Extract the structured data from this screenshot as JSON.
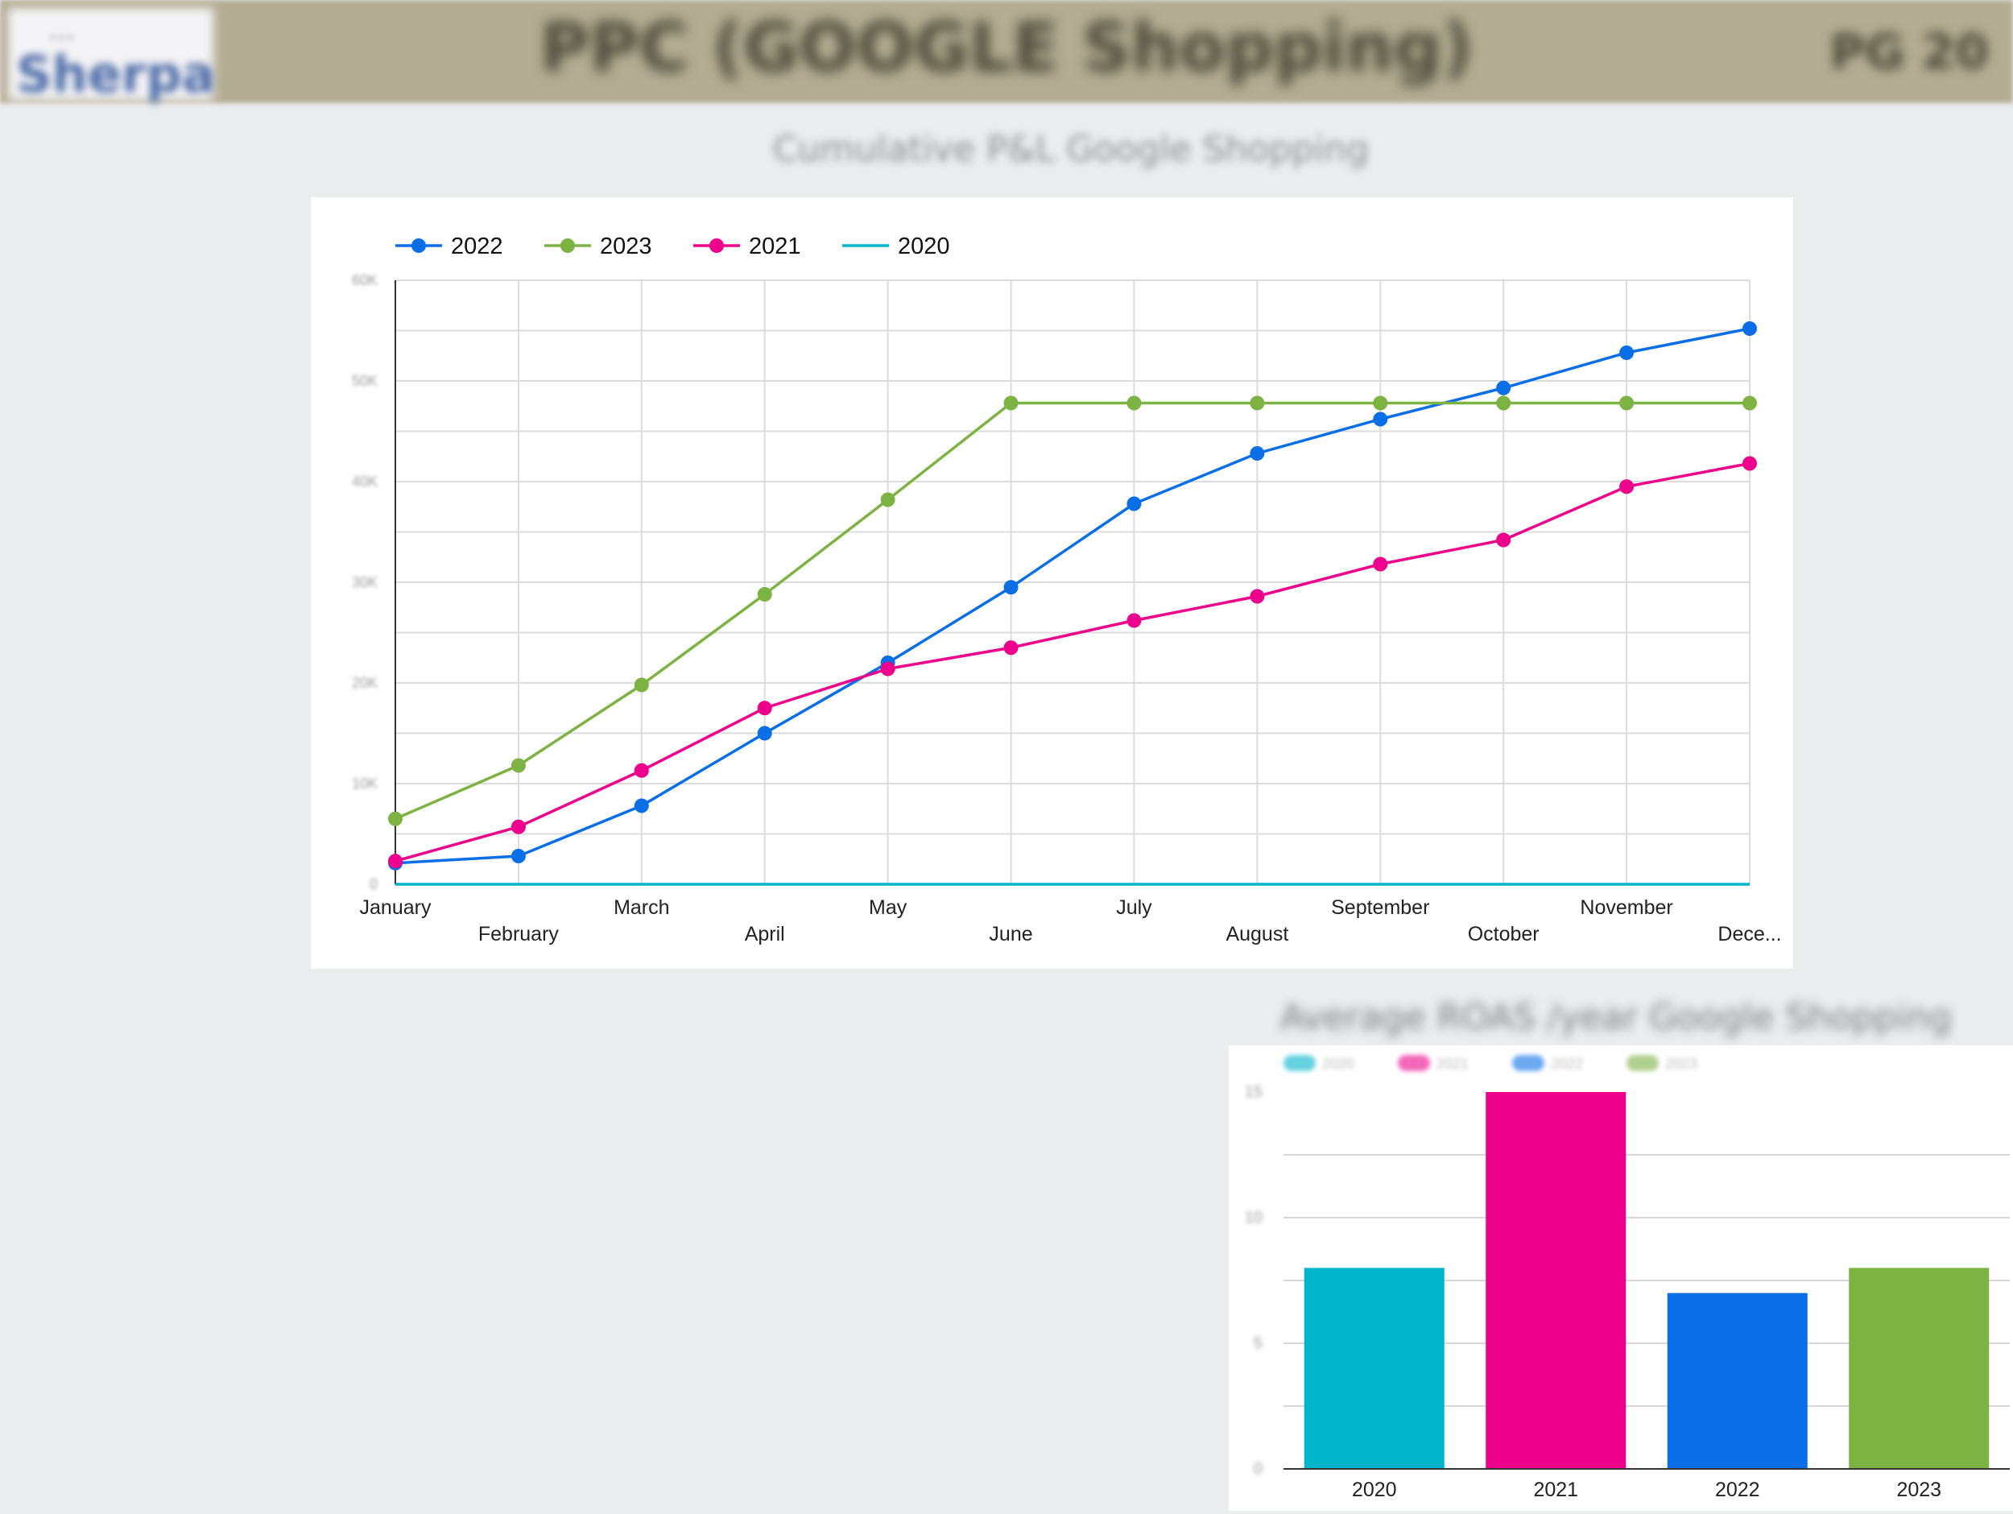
{
  "header": {
    "logo_top": "...",
    "logo_text": "Sherpa",
    "title": "PPC (GOOGLE Shopping)",
    "page_number": "PG 20"
  },
  "line_section": {
    "title": "Cumulative P&L Google Shopping"
  },
  "bar_section": {
    "title": "Average ROAS /year Google Shopping"
  },
  "colors": {
    "2020": "#00b4cc",
    "2021": "#ec008c",
    "2022": "#0a6fe6",
    "2023": "#7cb342"
  },
  "chart_data": [
    {
      "type": "line",
      "categories": [
        "January",
        "February",
        "March",
        "April",
        "May",
        "June",
        "July",
        "August",
        "September",
        "October",
        "November",
        "Dece..."
      ],
      "y_ticks": [
        "0",
        "10K",
        "20K",
        "30K",
        "40K",
        "50K",
        "60K"
      ],
      "ylim": [
        0,
        60000
      ],
      "grid": true,
      "legend_placement": "top-left",
      "series": [
        {
          "name": "2022",
          "color": "#0a6fe6",
          "markers": true,
          "values": [
            2100,
            2800,
            7800,
            15000,
            22000,
            29500,
            37800,
            42800,
            46200,
            49300,
            52800,
            55200
          ]
        },
        {
          "name": "2023",
          "color": "#7cb342",
          "markers": true,
          "values": [
            6500,
            11800,
            19800,
            28800,
            38200,
            47800,
            47800,
            47800,
            47800,
            47800,
            47800,
            47800
          ]
        },
        {
          "name": "2021",
          "color": "#ec008c",
          "markers": true,
          "values": [
            2300,
            5700,
            11300,
            17500,
            21400,
            23500,
            26200,
            28600,
            31800,
            34200,
            39500,
            41800
          ]
        },
        {
          "name": "2020",
          "color": "#00b4cc",
          "markers": false,
          "values": [
            0,
            0,
            0,
            0,
            0,
            0,
            0,
            0,
            0,
            0,
            0,
            0
          ]
        }
      ]
    },
    {
      "type": "bar",
      "categories": [
        "2020",
        "2021",
        "2022",
        "2023"
      ],
      "values": [
        8,
        15,
        7,
        8
      ],
      "colors": [
        "#00b4cc",
        "#ec008c",
        "#0a6fe6",
        "#7cb342"
      ],
      "y_ticks": [
        "0",
        "5",
        "10",
        "15"
      ],
      "ylim": [
        0,
        15
      ],
      "grid": true,
      "legend_placement": "top-left"
    }
  ]
}
